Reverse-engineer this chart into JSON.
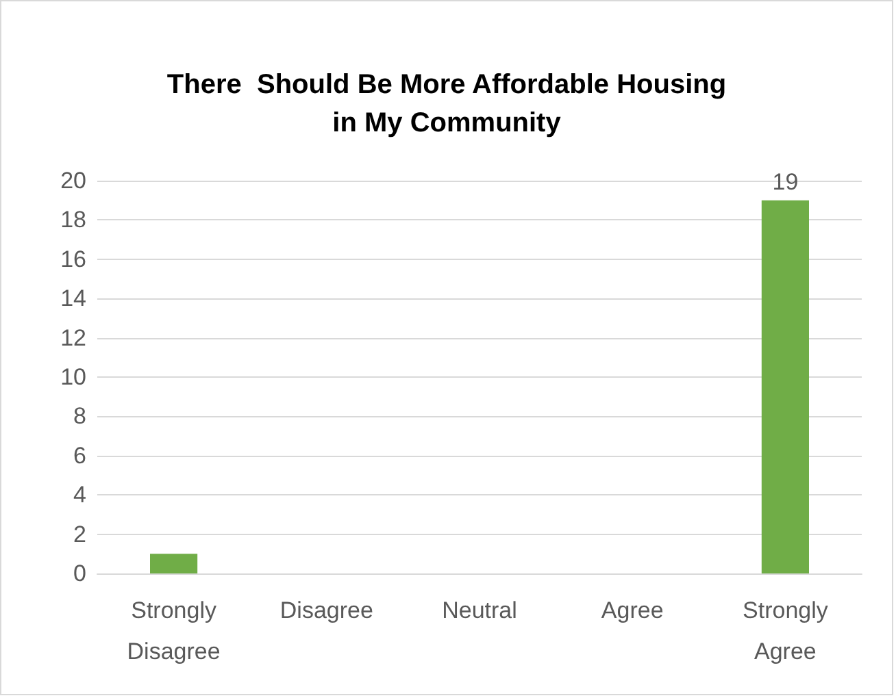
{
  "chart_data": {
    "type": "bar",
    "title": "There  Should Be More Affordable Housing\nin My Community",
    "categories": [
      "Strongly\nDisagree",
      "Disagree",
      "Neutral",
      "Agree",
      "Strongly\nAgree"
    ],
    "values": [
      1,
      0,
      0,
      0,
      19
    ],
    "color": "#70ad47",
    "value_labels": [
      null,
      null,
      null,
      null,
      "19"
    ],
    "ylim": [
      0,
      20
    ],
    "yticks": [
      0,
      2,
      4,
      6,
      8,
      10,
      12,
      14,
      16,
      18,
      20
    ],
    "grid": "y"
  }
}
